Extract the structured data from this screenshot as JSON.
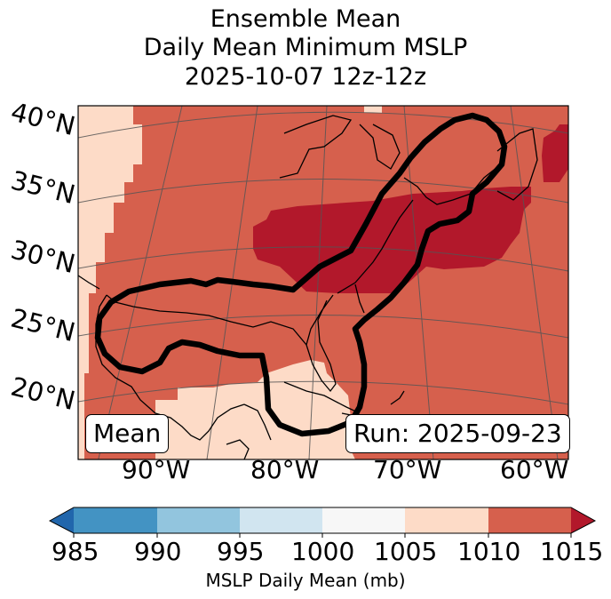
{
  "title": {
    "line1": "Ensemble Mean",
    "line2": "Daily Mean Minimum MSLP",
    "line3": "2025-10-07 12z-12z"
  },
  "map": {
    "lat_labels": [
      "40°N",
      "35°N",
      "30°N",
      "25°N",
      "20°N"
    ],
    "lon_labels": [
      "90°W",
      "80°W",
      "70°W",
      "60°W"
    ],
    "mean_box": "Mean",
    "run_box": "Run: 2025-09-23",
    "fill_colors": {
      "1005-1010": "#fddbc7",
      "1010-1015": "#d6604d",
      "over-1015": "#b2182b"
    },
    "contour_color": "#000000"
  },
  "colorbar": {
    "label": "MSLP Daily Mean (mb)",
    "ticks": [
      "985",
      "990",
      "995",
      "1000",
      "1005",
      "1010",
      "1015"
    ],
    "colors": {
      "under": "#2166ac",
      "985-990": "#4393c3",
      "990-995": "#92c5de",
      "995-1000": "#d1e5f0",
      "1000-1005": "#f7f7f7",
      "1005-1010": "#fddbc7",
      "1010-1015": "#d6604d",
      "over": "#b2182b"
    }
  }
}
